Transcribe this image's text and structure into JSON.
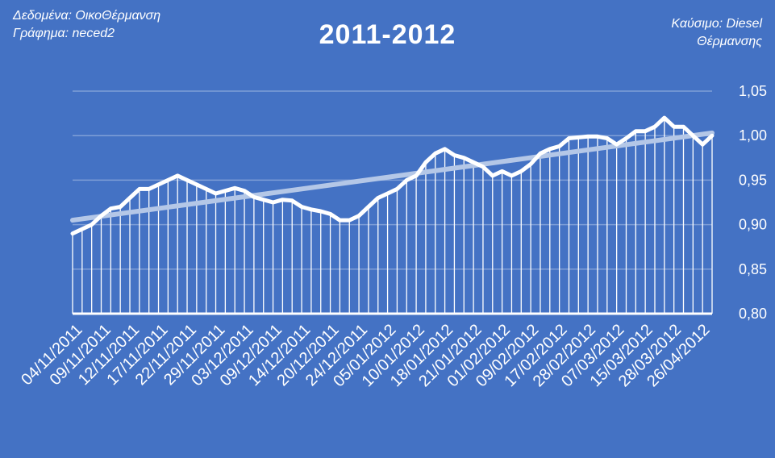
{
  "notes": {
    "data_label": "Δεδομένα: ΟικοΘέρμανση",
    "chart_label": "Γράφημα: neced2",
    "fuel_line1": "Καύσιμο: Diesel",
    "fuel_line2": "Θέρμανσης"
  },
  "colors": {
    "background": "#4472C4",
    "line": "#FFFFFF",
    "trend": "#B4C7E7",
    "drop_lines": "#FFFFFF",
    "grid": "#7F9FD7"
  },
  "chart_data": {
    "type": "line",
    "title": "2011-2012",
    "xlabel": "",
    "ylabel": "",
    "ylim": [
      0.8,
      1.05
    ],
    "y_ticks": [
      "0,80",
      "0,85",
      "0,90",
      "0,95",
      "1,00",
      "1,05"
    ],
    "grid": true,
    "legend": "none",
    "x_tick_labels": [
      "04/11/2011",
      "09/11/2011",
      "12/11/2011",
      "17/11/2011",
      "22/11/2011",
      "29/11/2011",
      "03/12/2011",
      "09/12/2011",
      "14/12/2011",
      "20/12/2011",
      "24/12/2011",
      "05/01/2012",
      "10/01/2012",
      "18/01/2012",
      "21/01/2012",
      "01/02/2012",
      "09/02/2012",
      "17/02/2012",
      "28/02/2012",
      "07/03/2012",
      "15/03/2012",
      "28/03/2012",
      "26/04/2012"
    ],
    "series": [
      {
        "values": [
          0.89,
          0.895,
          0.9,
          0.91,
          0.918,
          0.92,
          0.93,
          0.94,
          0.94,
          0.945,
          0.95,
          0.955,
          0.95,
          0.945,
          0.94,
          0.935,
          0.938,
          0.941,
          0.938,
          0.931,
          0.928,
          0.925,
          0.928,
          0.927,
          0.92,
          0.917,
          0.915,
          0.912,
          0.905,
          0.905,
          0.91,
          0.92,
          0.93,
          0.935,
          0.94,
          0.95,
          0.955,
          0.97,
          0.98,
          0.985,
          0.978,
          0.975,
          0.97,
          0.965,
          0.955,
          0.96,
          0.955,
          0.96,
          0.968,
          0.98,
          0.985,
          0.988,
          0.997,
          0.998,
          0.999,
          0.999,
          0.997,
          0.99,
          0.997,
          1.005,
          1.005,
          1.01,
          1.02,
          1.01,
          1.01,
          1.0,
          0.99,
          1.0
        ]
      }
    ],
    "trendline": {
      "type": "linear",
      "start": 0.905,
      "end": 1.003
    }
  }
}
